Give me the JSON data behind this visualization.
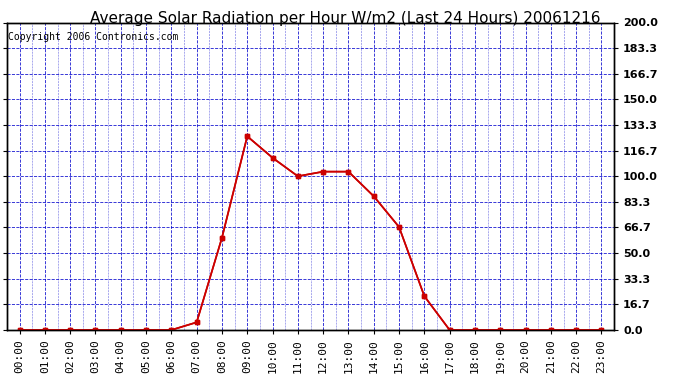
{
  "title": "Average Solar Radiation per Hour W/m2 (Last 24 Hours) 20061216",
  "copyright": "Copyright 2006 Contronics.com",
  "hours": [
    "00:00",
    "01:00",
    "02:00",
    "03:00",
    "04:00",
    "05:00",
    "06:00",
    "07:00",
    "08:00",
    "09:00",
    "10:00",
    "11:00",
    "12:00",
    "13:00",
    "14:00",
    "15:00",
    "16:00",
    "17:00",
    "18:00",
    "19:00",
    "20:00",
    "21:00",
    "22:00",
    "23:00"
  ],
  "values": [
    0.0,
    0.0,
    0.0,
    0.0,
    0.0,
    0.0,
    0.0,
    5.0,
    60.0,
    126.0,
    112.0,
    100.0,
    103.0,
    103.0,
    87.0,
    67.0,
    22.0,
    0.0,
    0.0,
    0.0,
    0.0,
    0.0,
    0.0,
    0.0
  ],
  "ylim": [
    0.0,
    200.0
  ],
  "yticks": [
    0.0,
    16.7,
    33.3,
    50.0,
    66.7,
    83.3,
    100.0,
    116.7,
    133.3,
    150.0,
    166.7,
    183.3,
    200.0
  ],
  "ytick_labels": [
    "0.0",
    "16.7",
    "33.3",
    "50.0",
    "66.7",
    "83.3",
    "100.0",
    "116.7",
    "133.3",
    "150.0",
    "166.7",
    "183.3",
    "200.0"
  ],
  "line_color": "#cc0000",
  "marker": "s",
  "marker_color": "#cc0000",
  "marker_size": 3,
  "grid_color": "#0000cc",
  "bg_color": "#ffffff",
  "plot_bg_color": "#ffffff",
  "title_fontsize": 11,
  "copyright_fontsize": 7,
  "tick_fontsize": 8,
  "border_color": "#000000"
}
